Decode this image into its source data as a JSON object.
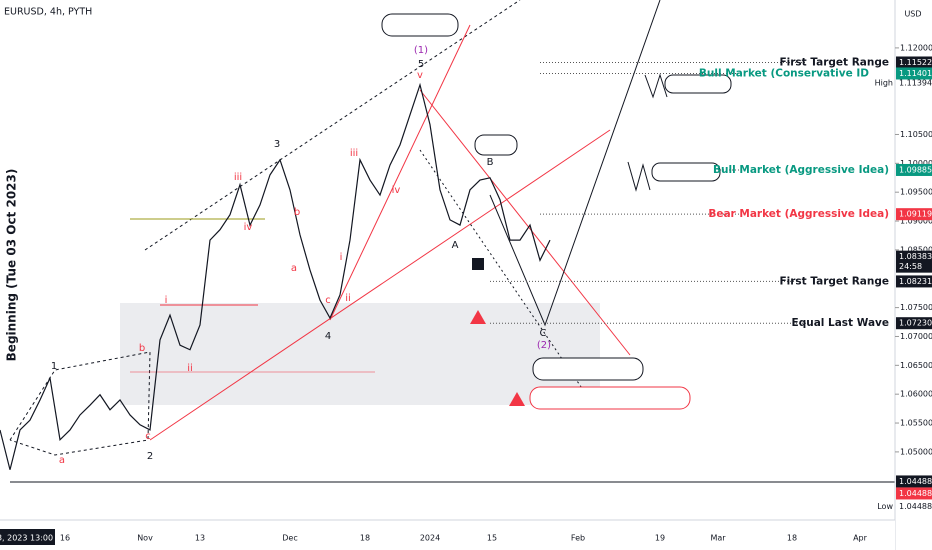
{
  "header": {
    "symbol": "EURUSD, 4h, PYTH",
    "currency": "USD",
    "y_axis_label": "Beginning (Tue 03 Oct 2023)"
  },
  "chart_data": {
    "type": "line",
    "color": "#131722",
    "values": [
      1.0538,
      1.0469,
      1.0538,
      1.0555,
      1.059,
      1.0628,
      1.0521,
      1.0538,
      1.0564,
      1.0581,
      1.0599,
      1.0573,
      1.059,
      1.0564,
      1.0547,
      1.0538,
      1.0694,
      1.0737,
      1.0685,
      1.0677,
      1.072,
      1.0867,
      1.0885,
      1.0911,
      1.0963,
      1.0893,
      1.0928,
      1.098,
      1.1006,
      1.0954,
      1.0876,
      1.0815,
      1.0763,
      1.0732,
      1.0772,
      1.0867,
      1.1006,
      1.0971,
      1.0945,
      1.0997,
      1.1032,
      1.1084,
      1.1136,
      1.1067,
      1.0954,
      1.0902,
      1.0893,
      1.0954,
      1.0971,
      1.0975,
      1.0937,
      1.0867,
      1.0867,
      1.0893,
      1.0832,
      1.0867
    ],
    "ylim": [
      1.0382,
      1.1283
    ],
    "yticks": [
      {
        "value": 1.05,
        "label": "1.05000"
      },
      {
        "value": 1.055,
        "label": "1.05500"
      },
      {
        "value": 1.06,
        "label": "1.06000"
      },
      {
        "value": 1.065,
        "label": "1.06500"
      },
      {
        "value": 1.07,
        "label": "1.07000"
      },
      {
        "value": 1.075,
        "label": "1.07500"
      },
      {
        "value": 1.085,
        "label": "1.08500"
      },
      {
        "value": 1.09,
        "label": "1.09000"
      },
      {
        "value": 1.095,
        "label": "1.09500"
      },
      {
        "value": 1.1,
        "label": "1.10000"
      },
      {
        "value": 1.105,
        "label": "1.10500"
      },
      {
        "value": 1.12,
        "label": "1.12000"
      }
    ],
    "x_labels": [
      "3, 2023 13:00",
      "16",
      "Nov",
      "13",
      "Dec",
      "18",
      "2024",
      "15",
      "Feb",
      "19",
      "Mar",
      "18",
      "Apr"
    ],
    "price_labels": [
      {
        "value": 1.11522,
        "label": "1.11522",
        "color": "#131722"
      },
      {
        "value": 1.11401,
        "label": "1.11401",
        "color": "#089981"
      },
      {
        "value": 1.11394,
        "label": "1.11394",
        "color": "none",
        "note": "High"
      },
      {
        "value": 1.09885,
        "label": "1.09885",
        "color": "#089981"
      },
      {
        "value": 1.09119,
        "label": "1.09119",
        "color": "#f23645"
      },
      {
        "value": 1.08383,
        "label": "1.08383",
        "color": "#131722",
        "note": "24:58"
      },
      {
        "value": 1.08231,
        "label": "1.08231",
        "color": "#131722"
      },
      {
        "value": 1.0723,
        "label": "1.07230",
        "color": "#131722"
      },
      {
        "value": 1.04488,
        "label": "1.04488",
        "color": "#131722"
      },
      {
        "value": 1.04488,
        "label": "1.04488",
        "color": "#f23645"
      },
      {
        "value": 1.04488,
        "label": "1.04488",
        "color": "none",
        "note": "Low"
      }
    ],
    "levels": [
      {
        "text": "First Target Range",
        "color": "#131722"
      },
      {
        "text": "Bull Market (Conservative ID",
        "color": "#089981"
      },
      {
        "text": "Bull Market (Aggressive Idea)",
        "color": "#089981"
      },
      {
        "text": "Bear Market (Aggressive Idea)",
        "color": "#f23645"
      },
      {
        "text": "First Target Range",
        "color": "#131722"
      },
      {
        "text": "Equal Last Wave",
        "color": "#131722"
      }
    ],
    "wave_labels": [
      "1",
      "a",
      "2",
      "b",
      "i",
      "ii",
      "c",
      "iii",
      "iv",
      "3",
      "b",
      "a",
      "c",
      "4",
      "i",
      "ii",
      "iii",
      "iv",
      "v",
      "5",
      "(1)",
      "A",
      "B",
      "C",
      "(2)"
    ],
    "annotations": {
      "five_waves": "Five Waves Up",
      "breaks_first": "Breaks First Trend Line",
      "impulse": "Impulse Wave",
      "triangle": "Triangle",
      "break_bottom": "Break Bottom Channel",
      "twice": "Twice The First Wave",
      "break_top": "Break Top Channel",
      "wave_one": "Wave One (Territory)",
      "three_waves": "Three Waves Corrective",
      "how_much": "How Much Big Or Small Correction ?!",
      "any1": "Any Corrective",
      "any2": "Any Corrective",
      "invalidation": "Price Invalidation Analysis ($1.04488)",
      "beginning": "Beginning ( Price $1.04488)"
    }
  }
}
